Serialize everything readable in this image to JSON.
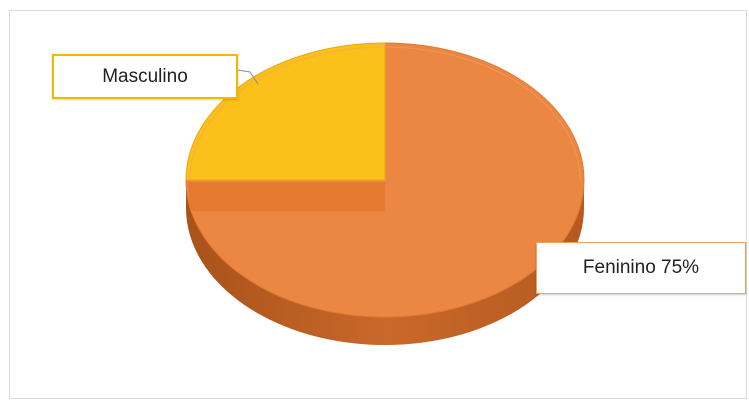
{
  "chart_data": {
    "type": "pie",
    "slices": [
      {
        "label": "Masculino",
        "value": 25,
        "color": "#fbc01a",
        "data_label": "Masculino"
      },
      {
        "label": "Feninino",
        "value": 75,
        "color": "#eb8742",
        "data_label": "Feninino 75%"
      }
    ],
    "style": "3d",
    "legend": "none"
  }
}
